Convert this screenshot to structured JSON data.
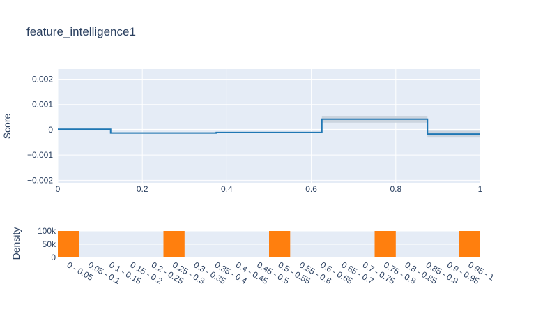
{
  "chart_data": [
    {
      "type": "line",
      "shape": "step",
      "title": "feature_intelligence1",
      "ylabel": "Score",
      "xlabel": "",
      "xlim": [
        0,
        1
      ],
      "ylim": [
        -0.0021,
        0.0024
      ],
      "x_ticks": [
        0,
        0.2,
        0.4,
        0.6,
        0.8,
        1
      ],
      "x_tick_labels": [
        "0",
        "0.2",
        "0.4",
        "0.6",
        "0.8",
        "1"
      ],
      "y_ticks": [
        -0.002,
        -0.001,
        0,
        0.001,
        0.002
      ],
      "y_tick_labels": [
        "−0.002",
        "−0.001",
        "0",
        "0.001",
        "0.002"
      ],
      "grid": true,
      "colors": {
        "line": "#1f77b4",
        "band": "#c8d1dc",
        "plot_bg": "#e5ecf6",
        "grid": "#ffffff"
      },
      "steps": [
        {
          "x0": 0.0,
          "x1": 0.125,
          "y": 2e-05,
          "lower": -3e-05,
          "upper": 5e-05
        },
        {
          "x0": 0.125,
          "x1": 0.375,
          "y": -0.00013,
          "lower": -0.00016,
          "upper": -0.0001
        },
        {
          "x0": 0.375,
          "x1": 0.625,
          "y": -0.00011,
          "lower": -0.00014,
          "upper": -8e-05
        },
        {
          "x0": 0.625,
          "x1": 0.875,
          "y": 0.00042,
          "lower": 0.00028,
          "upper": 0.00055
        },
        {
          "x0": 0.875,
          "x1": 1.0,
          "y": -0.00017,
          "lower": -0.00031,
          "upper": -4e-05
        }
      ]
    },
    {
      "type": "bar",
      "ylabel": "Density",
      "xlabel": "",
      "categories": [
        "0 - 0.05",
        "0.05 - 0.1",
        "0.1 - 0.15",
        "0.15 - 0.2",
        "0.2 - 0.25",
        "0.25 - 0.3",
        "0.3 - 0.35",
        "0.35 - 0.4",
        "0.4 - 0.45",
        "0.45 - 0.5",
        "0.5 - 0.55",
        "0.55 - 0.6",
        "0.6 - 0.65",
        "0.65 - 0.7",
        "0.7 - 0.75",
        "0.75 - 0.8",
        "0.8 - 0.85",
        "0.85 - 0.9",
        "0.9 - 0.95",
        "0.95 - 1"
      ],
      "values": [
        100000,
        0,
        0,
        0,
        0,
        100000,
        0,
        0,
        0,
        0,
        100000,
        0,
        0,
        0,
        0,
        100000,
        0,
        0,
        0,
        100000
      ],
      "ylim": [
        0,
        100000
      ],
      "y_ticks": [
        0,
        50000,
        100000
      ],
      "y_tick_labels": [
        "0",
        "50k",
        "100k"
      ],
      "grid": true,
      "colors": {
        "bar": "#ff7f0e",
        "plot_bg": "#e5ecf6",
        "grid": "#ffffff"
      }
    }
  ]
}
